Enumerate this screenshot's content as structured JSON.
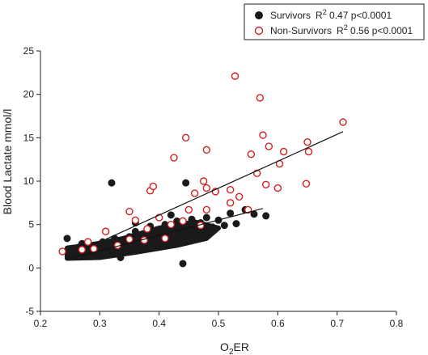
{
  "chart_data": {
    "type": "scatter",
    "xlabel_main": "O",
    "xlabel_sub": "2",
    "xlabel_tail": "ER",
    "ylabel": "Blood Lactate mmol/l",
    "xlim": [
      0.2,
      0.8
    ],
    "ylim": [
      -5,
      25
    ],
    "x_ticks": [
      "0.2",
      "0.3",
      "0.4",
      "0.5",
      "0.6",
      "0.7",
      "0.8"
    ],
    "y_ticks": [
      "-5",
      "0",
      "5",
      "10",
      "15",
      "20",
      "25"
    ],
    "x_tick_values": [
      0.2,
      0.3,
      0.4,
      0.5,
      0.6,
      0.7,
      0.8
    ],
    "y_tick_values": [
      -5,
      0,
      5,
      10,
      15,
      20,
      25
    ],
    "grid": false,
    "legend_position": "top-right",
    "series": [
      {
        "name": "Survivors",
        "stat_prefix": "R",
        "stat_sup": "2",
        "stat_tail": " 0.47 p<0.0001",
        "marker": "filled-circle",
        "color": "#1a1a1a",
        "points": [
          [
            0.245,
            3.4
          ],
          [
            0.25,
            2.0
          ],
          [
            0.26,
            1.6
          ],
          [
            0.265,
            2.4
          ],
          [
            0.27,
            2.8
          ],
          [
            0.275,
            1.8
          ],
          [
            0.28,
            2.2
          ],
          [
            0.285,
            1.3
          ],
          [
            0.29,
            2.6
          ],
          [
            0.295,
            1.9
          ],
          [
            0.3,
            2.3
          ],
          [
            0.305,
            3.0
          ],
          [
            0.31,
            1.7
          ],
          [
            0.315,
            2.5
          ],
          [
            0.32,
            9.8
          ],
          [
            0.32,
            2.0
          ],
          [
            0.325,
            3.4
          ],
          [
            0.33,
            2.7
          ],
          [
            0.335,
            1.2
          ],
          [
            0.34,
            3.0
          ],
          [
            0.345,
            2.2
          ],
          [
            0.35,
            3.6
          ],
          [
            0.355,
            2.6
          ],
          [
            0.36,
            4.2
          ],
          [
            0.365,
            3.0
          ],
          [
            0.37,
            2.4
          ],
          [
            0.375,
            3.8
          ],
          [
            0.38,
            3.2
          ],
          [
            0.385,
            4.8
          ],
          [
            0.39,
            3.5
          ],
          [
            0.395,
            2.8
          ],
          [
            0.4,
            4.0
          ],
          [
            0.405,
            3.3
          ],
          [
            0.41,
            5.0
          ],
          [
            0.415,
            3.7
          ],
          [
            0.42,
            4.4
          ],
          [
            0.425,
            3.0
          ],
          [
            0.43,
            5.4
          ],
          [
            0.435,
            4.1
          ],
          [
            0.44,
            0.5
          ],
          [
            0.44,
            3.6
          ],
          [
            0.445,
            4.9
          ],
          [
            0.45,
            4.2
          ],
          [
            0.455,
            5.6
          ],
          [
            0.46,
            3.9
          ],
          [
            0.465,
            4.6
          ],
          [
            0.47,
            5.2
          ],
          [
            0.475,
            4.3
          ],
          [
            0.48,
            5.8
          ],
          [
            0.49,
            4.7
          ],
          [
            0.5,
            5.5
          ],
          [
            0.51,
            4.9
          ],
          [
            0.52,
            6.3
          ],
          [
            0.53,
            5.1
          ],
          [
            0.545,
            6.7
          ],
          [
            0.56,
            6.2
          ],
          [
            0.58,
            6.0
          ],
          [
            0.445,
            9.8
          ],
          [
            0.42,
            6.1
          ],
          [
            0.36,
            5.2
          ]
        ]
      },
      {
        "name": "Non-Survivors",
        "stat_prefix": "R",
        "stat_sup": "2",
        "stat_tail": " 0.56 p<0.0001",
        "marker": "open-circle",
        "color": "#d22020",
        "points": [
          [
            0.237,
            1.9
          ],
          [
            0.27,
            2.1
          ],
          [
            0.28,
            3.0
          ],
          [
            0.29,
            2.2
          ],
          [
            0.31,
            4.2
          ],
          [
            0.33,
            2.6
          ],
          [
            0.35,
            3.3
          ],
          [
            0.35,
            6.5
          ],
          [
            0.36,
            5.5
          ],
          [
            0.375,
            3.2
          ],
          [
            0.38,
            4.5
          ],
          [
            0.385,
            8.9
          ],
          [
            0.39,
            9.4
          ],
          [
            0.4,
            5.8
          ],
          [
            0.41,
            3.4
          ],
          [
            0.42,
            5.0
          ],
          [
            0.425,
            12.7
          ],
          [
            0.44,
            5.4
          ],
          [
            0.445,
            15.0
          ],
          [
            0.45,
            6.7
          ],
          [
            0.46,
            8.6
          ],
          [
            0.47,
            4.9
          ],
          [
            0.475,
            10.0
          ],
          [
            0.48,
            13.6
          ],
          [
            0.48,
            9.2
          ],
          [
            0.48,
            6.7
          ],
          [
            0.495,
            8.8
          ],
          [
            0.52,
            7.5
          ],
          [
            0.52,
            9.0
          ],
          [
            0.528,
            22.1
          ],
          [
            0.535,
            8.2
          ],
          [
            0.55,
            6.7
          ],
          [
            0.555,
            13.1
          ],
          [
            0.565,
            10.9
          ],
          [
            0.57,
            19.6
          ],
          [
            0.575,
            15.3
          ],
          [
            0.58,
            9.6
          ],
          [
            0.585,
            14.0
          ],
          [
            0.6,
            9.2
          ],
          [
            0.603,
            12.0
          ],
          [
            0.61,
            13.4
          ],
          [
            0.648,
            9.7
          ],
          [
            0.65,
            14.5
          ],
          [
            0.652,
            13.4
          ],
          [
            0.71,
            16.8
          ]
        ]
      }
    ],
    "regression_lines": [
      {
        "series": "Survivors",
        "x": [
          0.245,
          0.575
        ],
        "y": [
          1.0,
          6.85
        ]
      },
      {
        "series": "Non-Survivors",
        "x": [
          0.31,
          0.71
        ],
        "y": [
          3.3,
          15.7
        ]
      }
    ]
  }
}
